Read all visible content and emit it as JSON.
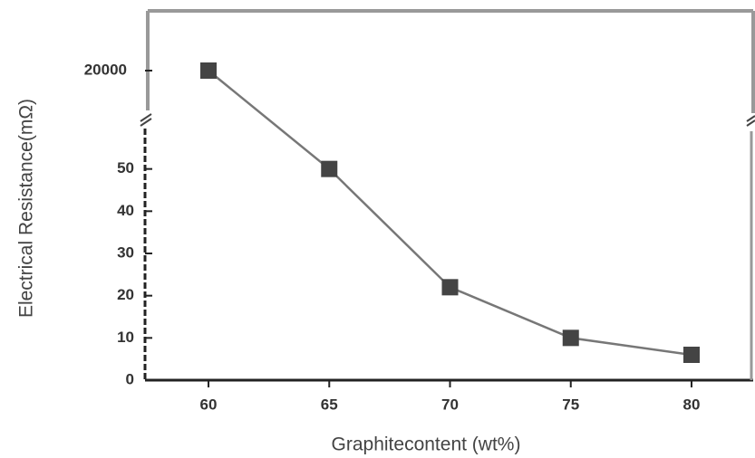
{
  "chart_data": {
    "type": "line",
    "x_label": "Graphitecontent  (wt%)",
    "y_label": "Electrical Resistance(mΩ)",
    "x": [
      60,
      65,
      70,
      75,
      80
    ],
    "series": [
      {
        "color": "#444444",
        "values": [
          20000,
          50,
          22,
          10,
          6
        ]
      }
    ],
    "xlim": [
      57.5,
      82.5
    ],
    "xticks": [
      60,
      65,
      70,
      75,
      80
    ],
    "y_segments": [
      {
        "ylim": [
          0,
          60
        ],
        "yticks": [
          0,
          10,
          20,
          30,
          40,
          50
        ]
      },
      {
        "ylim": [
          19000,
          21000
        ],
        "yticks": [
          20000
        ]
      }
    ]
  }
}
